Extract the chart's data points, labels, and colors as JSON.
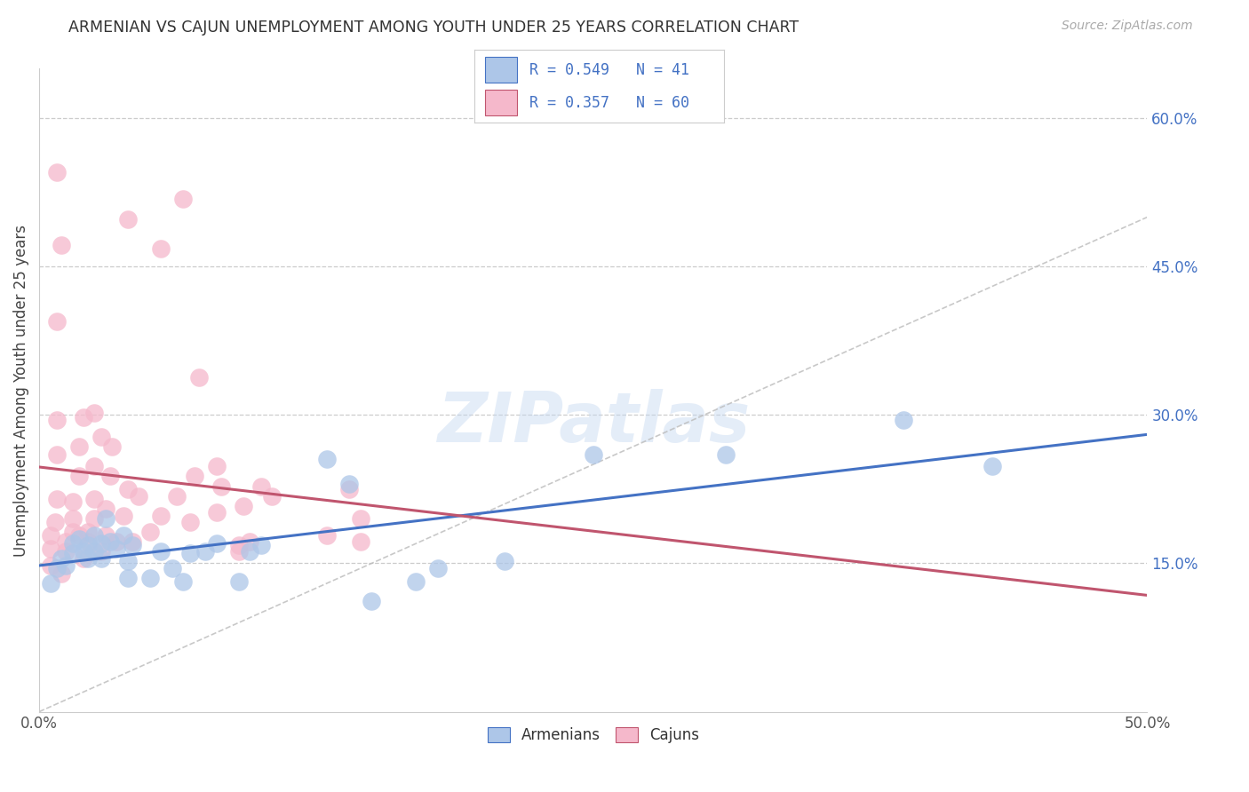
{
  "title": "ARMENIAN VS CAJUN UNEMPLOYMENT AMONG YOUTH UNDER 25 YEARS CORRELATION CHART",
  "source": "Source: ZipAtlas.com",
  "ylabel": "Unemployment Among Youth under 25 years",
  "xlim": [
    0.0,
    0.5
  ],
  "ylim": [
    0.0,
    0.65
  ],
  "xticks": [
    0.0,
    0.5
  ],
  "xticklabels": [
    "0.0%",
    "50.0%"
  ],
  "yticks": [
    0.15,
    0.3,
    0.45,
    0.6
  ],
  "yticklabels": [
    "15.0%",
    "30.0%",
    "45.0%",
    "60.0%"
  ],
  "armenian_color": "#adc6e8",
  "cajun_color": "#f5b8cb",
  "armenian_line_color": "#4472c4",
  "cajun_line_color": "#c0556e",
  "armenian_R": 0.549,
  "armenian_N": 41,
  "cajun_R": 0.357,
  "cajun_N": 60,
  "watermark": "ZIPatlas",
  "armenian_points": [
    [
      0.005,
      0.13
    ],
    [
      0.008,
      0.145
    ],
    [
      0.01,
      0.155
    ],
    [
      0.012,
      0.148
    ],
    [
      0.015,
      0.16
    ],
    [
      0.015,
      0.17
    ],
    [
      0.018,
      0.175
    ],
    [
      0.02,
      0.162
    ],
    [
      0.022,
      0.155
    ],
    [
      0.022,
      0.168
    ],
    [
      0.025,
      0.178
    ],
    [
      0.025,
      0.162
    ],
    [
      0.028,
      0.17
    ],
    [
      0.028,
      0.155
    ],
    [
      0.03,
      0.195
    ],
    [
      0.032,
      0.172
    ],
    [
      0.035,
      0.165
    ],
    [
      0.038,
      0.178
    ],
    [
      0.04,
      0.152
    ],
    [
      0.04,
      0.135
    ],
    [
      0.042,
      0.168
    ],
    [
      0.05,
      0.135
    ],
    [
      0.055,
      0.162
    ],
    [
      0.06,
      0.145
    ],
    [
      0.065,
      0.132
    ],
    [
      0.068,
      0.16
    ],
    [
      0.075,
      0.162
    ],
    [
      0.08,
      0.17
    ],
    [
      0.09,
      0.132
    ],
    [
      0.095,
      0.162
    ],
    [
      0.1,
      0.168
    ],
    [
      0.13,
      0.255
    ],
    [
      0.14,
      0.23
    ],
    [
      0.15,
      0.112
    ],
    [
      0.17,
      0.132
    ],
    [
      0.18,
      0.145
    ],
    [
      0.21,
      0.152
    ],
    [
      0.25,
      0.26
    ],
    [
      0.31,
      0.26
    ],
    [
      0.39,
      0.295
    ],
    [
      0.43,
      0.248
    ]
  ],
  "cajun_points": [
    [
      0.005,
      0.148
    ],
    [
      0.005,
      0.165
    ],
    [
      0.005,
      0.178
    ],
    [
      0.007,
      0.192
    ],
    [
      0.008,
      0.215
    ],
    [
      0.008,
      0.26
    ],
    [
      0.008,
      0.295
    ],
    [
      0.008,
      0.395
    ],
    [
      0.008,
      0.545
    ],
    [
      0.01,
      0.14
    ],
    [
      0.012,
      0.162
    ],
    [
      0.012,
      0.172
    ],
    [
      0.015,
      0.182
    ],
    [
      0.015,
      0.195
    ],
    [
      0.015,
      0.212
    ],
    [
      0.018,
      0.238
    ],
    [
      0.018,
      0.268
    ],
    [
      0.02,
      0.298
    ],
    [
      0.02,
      0.155
    ],
    [
      0.022,
      0.172
    ],
    [
      0.022,
      0.182
    ],
    [
      0.025,
      0.195
    ],
    [
      0.025,
      0.215
    ],
    [
      0.025,
      0.248
    ],
    [
      0.028,
      0.278
    ],
    [
      0.028,
      0.162
    ],
    [
      0.03,
      0.178
    ],
    [
      0.03,
      0.205
    ],
    [
      0.032,
      0.238
    ],
    [
      0.033,
      0.268
    ],
    [
      0.035,
      0.172
    ],
    [
      0.038,
      0.198
    ],
    [
      0.04,
      0.225
    ],
    [
      0.042,
      0.172
    ],
    [
      0.045,
      0.218
    ],
    [
      0.05,
      0.182
    ],
    [
      0.055,
      0.198
    ],
    [
      0.062,
      0.218
    ],
    [
      0.068,
      0.192
    ],
    [
      0.07,
      0.238
    ],
    [
      0.072,
      0.338
    ],
    [
      0.08,
      0.202
    ],
    [
      0.082,
      0.228
    ],
    [
      0.09,
      0.162
    ],
    [
      0.092,
      0.208
    ],
    [
      0.095,
      0.172
    ],
    [
      0.1,
      0.228
    ],
    [
      0.105,
      0.218
    ],
    [
      0.14,
      0.225
    ],
    [
      0.145,
      0.195
    ],
    [
      0.01,
      0.472
    ],
    [
      0.04,
      0.498
    ],
    [
      0.055,
      0.468
    ],
    [
      0.065,
      0.518
    ],
    [
      0.018,
      0.178
    ],
    [
      0.025,
      0.302
    ],
    [
      0.08,
      0.248
    ],
    [
      0.09,
      0.168
    ],
    [
      0.13,
      0.178
    ],
    [
      0.145,
      0.172
    ]
  ]
}
